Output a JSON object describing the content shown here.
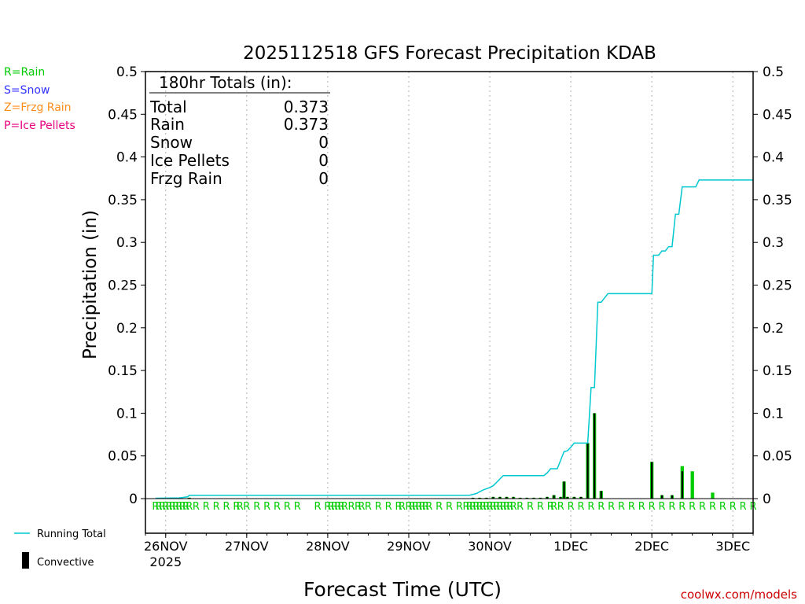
{
  "chart_data": {
    "type": "bar",
    "title": "2025112518 GFS Forecast Precipitation KDAB",
    "xlabel": "Forecast Time (UTC)",
    "ylabel": "Precipitation (in)",
    "ylim": [
      0,
      0.5
    ],
    "xlim_hours": [
      -6,
      174
    ],
    "y_ticks": [
      0,
      0.05,
      0.1,
      0.15,
      0.2,
      0.25,
      0.3,
      0.35,
      0.4,
      0.45,
      0.5
    ],
    "y_tick_labels": [
      "0",
      "0.05",
      "0.1",
      "0.15",
      "0.2",
      "0.25",
      "0.3",
      "0.35",
      "0.4",
      "0.45",
      "0.5"
    ],
    "x_ticks": [
      {
        "hour": 0,
        "label": "26NOV",
        "sublabel": "2025"
      },
      {
        "hour": 24,
        "label": "27NOV"
      },
      {
        "hour": 48,
        "label": "28NOV"
      },
      {
        "hour": 72,
        "label": "29NOV"
      },
      {
        "hour": 96,
        "label": "30NOV"
      },
      {
        "hour": 120,
        "label": "1DEC"
      },
      {
        "hour": 144,
        "label": "2DEC"
      },
      {
        "hour": 168,
        "label": "3DEC"
      }
    ],
    "legend_types": [
      {
        "code": "R",
        "label": "R=Rain",
        "color": "#00cc00"
      },
      {
        "code": "S",
        "label": "S=Snow",
        "color": "#3333ff"
      },
      {
        "code": "Z",
        "label": "Z=Frzg Rain",
        "color": "#ff8c1a"
      },
      {
        "code": "P",
        "label": "P=Ice Pellets",
        "color": "#e6007e"
      }
    ],
    "legend_series": {
      "running_total": "Running Total",
      "convective": "Convective"
    },
    "totals": {
      "header": "180hr Totals (in):",
      "rows": [
        {
          "label": "Total",
          "value": "0.373"
        },
        {
          "label": "Rain",
          "value": "0.373"
        },
        {
          "label": "Snow",
          "value": "0"
        },
        {
          "label": "Ice Pellets",
          "value": "0"
        },
        {
          "label": "Frzg Rain",
          "value": "0"
        }
      ]
    },
    "series": [
      {
        "name": "Running Total",
        "type": "line",
        "color": "#00c8d0",
        "points": [
          [
            -3,
            0.0005
          ],
          [
            4,
            0.0008
          ],
          [
            6.5,
            0.002
          ],
          [
            7,
            0.004
          ],
          [
            90,
            0.004
          ],
          [
            92,
            0.006
          ],
          [
            94,
            0.01
          ],
          [
            96,
            0.013
          ],
          [
            97,
            0.015
          ],
          [
            98,
            0.019
          ],
          [
            99,
            0.023
          ],
          [
            100,
            0.027
          ],
          [
            112,
            0.027
          ],
          [
            113,
            0.03
          ],
          [
            114,
            0.035
          ],
          [
            116,
            0.035
          ],
          [
            117,
            0.045
          ],
          [
            118,
            0.055
          ],
          [
            119,
            0.056
          ],
          [
            120,
            0.06
          ],
          [
            121,
            0.065
          ],
          [
            125,
            0.065
          ],
          [
            126,
            0.13
          ],
          [
            127,
            0.13
          ],
          [
            128,
            0.23
          ],
          [
            129,
            0.23
          ],
          [
            130,
            0.235
          ],
          [
            131,
            0.24
          ],
          [
            144,
            0.24
          ],
          [
            144.5,
            0.285
          ],
          [
            146,
            0.285
          ],
          [
            147,
            0.29
          ],
          [
            148,
            0.29
          ],
          [
            149,
            0.295
          ],
          [
            150,
            0.295
          ],
          [
            151,
            0.333
          ],
          [
            152,
            0.333
          ],
          [
            153,
            0.365
          ],
          [
            157,
            0.365
          ],
          [
            158,
            0.373
          ],
          [
            174,
            0.373
          ]
        ]
      },
      {
        "name": "Total Precipitation",
        "type": "bar",
        "color": "#00cc00",
        "bar_width_hours": 1,
        "hours": [
          7,
          91,
          93,
          95,
          97,
          99,
          101,
          103,
          105,
          107,
          109,
          111,
          113,
          115,
          117,
          118,
          119,
          121,
          123,
          125,
          127,
          129,
          144,
          147,
          150,
          153,
          156,
          162
        ],
        "values": [
          0.001,
          0.001,
          0.001,
          0.001,
          0.002,
          0.002,
          0.002,
          0.002,
          0.001,
          0.001,
          0.001,
          0.001,
          0.002,
          0.004,
          0.002,
          0.02,
          0.002,
          0.002,
          0.002,
          0.065,
          0.1,
          0.009,
          0.043,
          0.004,
          0.004,
          0.038,
          0.032,
          0.007
        ]
      },
      {
        "name": "Convective",
        "type": "bar",
        "color": "#000000",
        "bar_width_hours": 0.5,
        "hours": [
          7,
          91,
          93,
          95,
          97,
          99,
          101,
          103,
          105,
          107,
          109,
          111,
          113,
          115,
          117,
          118,
          119,
          121,
          123,
          125,
          127,
          129,
          144,
          147,
          150,
          153
        ],
        "values": [
          0.001,
          0.001,
          0.001,
          0.001,
          0.002,
          0.002,
          0.002,
          0.002,
          0.001,
          0.001,
          0.001,
          0.001,
          0.002,
          0.004,
          0.002,
          0.02,
          0.002,
          0.002,
          0.002,
          0.065,
          0.1,
          0.009,
          0.043,
          0.004,
          0.004,
          0.032
        ]
      }
    ],
    "precip_type_markers": {
      "color": "#00cc00",
      "hours": [
        -3,
        -2,
        -1,
        0,
        1,
        2,
        3,
        4,
        5,
        6,
        7,
        9,
        12,
        15,
        18,
        21,
        22,
        24,
        27,
        30,
        33,
        36,
        39,
        45,
        48,
        49,
        50,
        51,
        52,
        53,
        55,
        57,
        58,
        60,
        63,
        66,
        69,
        70,
        72,
        73,
        74,
        75,
        76,
        77,
        78,
        81,
        84,
        87,
        89,
        90,
        91,
        92,
        93,
        94,
        95,
        96,
        97,
        98,
        99,
        100,
        101,
        102,
        103,
        105,
        108,
        111,
        114,
        115,
        117,
        120,
        123,
        126,
        129,
        132,
        135,
        138,
        141,
        144,
        147,
        150,
        153,
        156,
        159,
        162,
        165,
        168,
        171,
        174
      ],
      "codes": [
        "R",
        "R",
        "R",
        "R",
        "R",
        "R",
        "R",
        "R",
        "R",
        "R",
        "R",
        "R",
        "R",
        "R",
        "R",
        "R",
        "R",
        "R",
        "R",
        "R",
        "R",
        "R",
        "R",
        "R",
        "R",
        "R",
        "R",
        "R",
        "R",
        "R",
        "R",
        "R",
        "R",
        "R",
        "R",
        "R",
        "R",
        "R",
        "R",
        "R",
        "R",
        "R",
        "R",
        "R",
        "R",
        "R",
        "R",
        "R",
        "R",
        "R",
        "R",
        "R",
        "R",
        "R",
        "R",
        "R",
        "R",
        "R",
        "R",
        "R",
        "R",
        "R",
        "R",
        "R",
        "R",
        "R",
        "R",
        "R",
        "R",
        "R",
        "R",
        "R",
        "R",
        "R",
        "R",
        "R",
        "R",
        "R",
        "R",
        "R",
        "R",
        "R",
        "R",
        "R",
        "R",
        "R",
        "R",
        "R"
      ]
    },
    "credit": "coolwx.com/models"
  }
}
